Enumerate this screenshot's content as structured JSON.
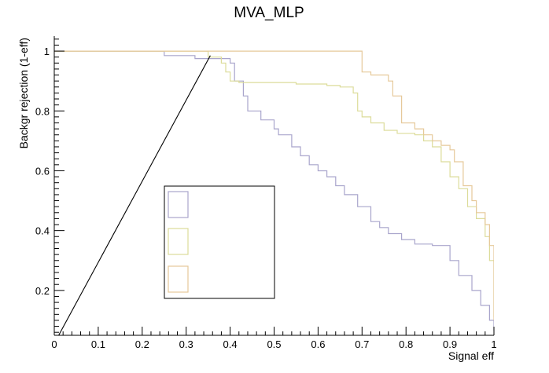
{
  "chart_data": {
    "type": "line",
    "title": "MVA_MLP",
    "xlabel": "Signal eff",
    "ylabel": "Backgr rejection (1-eff)",
    "xlim": [
      0,
      1
    ],
    "ylim": [
      0.05,
      1.05
    ],
    "x_ticks": [
      "0",
      "0.1",
      "0.2",
      "0.3",
      "0.4",
      "0.5",
      "0.6",
      "0.7",
      "0.8",
      "0.9",
      "1"
    ],
    "y_ticks": [
      "0.2",
      "0.4",
      "0.6",
      "0.8",
      "1"
    ],
    "grid": false,
    "legend_placement": "center",
    "series": [
      {
        "name": "",
        "color": "#a9a5cc",
        "points": [
          [
            0,
            1.0
          ],
          [
            0.25,
            1.0
          ],
          [
            0.25,
            0.985
          ],
          [
            0.32,
            0.985
          ],
          [
            0.32,
            0.975
          ],
          [
            0.4,
            0.975
          ],
          [
            0.4,
            0.96
          ],
          [
            0.41,
            0.96
          ],
          [
            0.41,
            0.9
          ],
          [
            0.43,
            0.9
          ],
          [
            0.43,
            0.85
          ],
          [
            0.44,
            0.85
          ],
          [
            0.44,
            0.8
          ],
          [
            0.47,
            0.8
          ],
          [
            0.47,
            0.77
          ],
          [
            0.5,
            0.77
          ],
          [
            0.5,
            0.74
          ],
          [
            0.51,
            0.74
          ],
          [
            0.51,
            0.72
          ],
          [
            0.54,
            0.72
          ],
          [
            0.54,
            0.68
          ],
          [
            0.56,
            0.68
          ],
          [
            0.56,
            0.65
          ],
          [
            0.58,
            0.65
          ],
          [
            0.58,
            0.62
          ],
          [
            0.6,
            0.62
          ],
          [
            0.6,
            0.6
          ],
          [
            0.62,
            0.6
          ],
          [
            0.62,
            0.58
          ],
          [
            0.64,
            0.58
          ],
          [
            0.64,
            0.55
          ],
          [
            0.66,
            0.55
          ],
          [
            0.66,
            0.52
          ],
          [
            0.69,
            0.52
          ],
          [
            0.69,
            0.48
          ],
          [
            0.72,
            0.48
          ],
          [
            0.72,
            0.43
          ],
          [
            0.74,
            0.43
          ],
          [
            0.74,
            0.41
          ],
          [
            0.76,
            0.41
          ],
          [
            0.76,
            0.39
          ],
          [
            0.79,
            0.39
          ],
          [
            0.79,
            0.37
          ],
          [
            0.82,
            0.37
          ],
          [
            0.82,
            0.355
          ],
          [
            0.86,
            0.355
          ],
          [
            0.86,
            0.35
          ],
          [
            0.9,
            0.35
          ],
          [
            0.9,
            0.3
          ],
          [
            0.92,
            0.3
          ],
          [
            0.92,
            0.25
          ],
          [
            0.95,
            0.25
          ],
          [
            0.95,
            0.2
          ],
          [
            0.97,
            0.2
          ],
          [
            0.97,
            0.15
          ],
          [
            0.99,
            0.15
          ],
          [
            0.99,
            0.1
          ],
          [
            1,
            0.1
          ],
          [
            1,
            0.065
          ]
        ]
      },
      {
        "name": "",
        "color": "#dcdc9a",
        "points": [
          [
            0,
            1.0
          ],
          [
            0.35,
            1.0
          ],
          [
            0.35,
            0.98
          ],
          [
            0.38,
            0.98
          ],
          [
            0.38,
            0.96
          ],
          [
            0.39,
            0.96
          ],
          [
            0.39,
            0.93
          ],
          [
            0.4,
            0.93
          ],
          [
            0.4,
            0.9
          ],
          [
            0.42,
            0.9
          ],
          [
            0.42,
            0.895
          ],
          [
            0.55,
            0.895
          ],
          [
            0.55,
            0.89
          ],
          [
            0.62,
            0.89
          ],
          [
            0.62,
            0.885
          ],
          [
            0.65,
            0.885
          ],
          [
            0.65,
            0.88
          ],
          [
            0.68,
            0.88
          ],
          [
            0.68,
            0.86
          ],
          [
            0.69,
            0.86
          ],
          [
            0.69,
            0.8
          ],
          [
            0.7,
            0.8
          ],
          [
            0.7,
            0.78
          ],
          [
            0.72,
            0.78
          ],
          [
            0.72,
            0.76
          ],
          [
            0.75,
            0.76
          ],
          [
            0.75,
            0.735
          ],
          [
            0.78,
            0.735
          ],
          [
            0.78,
            0.725
          ],
          [
            0.82,
            0.725
          ],
          [
            0.82,
            0.72
          ],
          [
            0.84,
            0.72
          ],
          [
            0.84,
            0.7
          ],
          [
            0.86,
            0.7
          ],
          [
            0.86,
            0.68
          ],
          [
            0.88,
            0.68
          ],
          [
            0.88,
            0.63
          ],
          [
            0.9,
            0.63
          ],
          [
            0.9,
            0.58
          ],
          [
            0.92,
            0.58
          ],
          [
            0.92,
            0.54
          ],
          [
            0.94,
            0.54
          ],
          [
            0.94,
            0.48
          ],
          [
            0.96,
            0.48
          ],
          [
            0.96,
            0.44
          ],
          [
            0.98,
            0.44
          ],
          [
            0.98,
            0.38
          ],
          [
            0.99,
            0.38
          ],
          [
            0.99,
            0.3
          ],
          [
            1,
            0.3
          ],
          [
            1,
            0.11
          ]
        ]
      },
      {
        "name": "",
        "color": "#e6c99a",
        "points": [
          [
            0,
            1.0
          ],
          [
            0.7,
            1.0
          ],
          [
            0.7,
            0.93
          ],
          [
            0.72,
            0.93
          ],
          [
            0.72,
            0.92
          ],
          [
            0.76,
            0.92
          ],
          [
            0.76,
            0.9
          ],
          [
            0.77,
            0.9
          ],
          [
            0.77,
            0.85
          ],
          [
            0.79,
            0.85
          ],
          [
            0.79,
            0.76
          ],
          [
            0.82,
            0.76
          ],
          [
            0.82,
            0.74
          ],
          [
            0.84,
            0.74
          ],
          [
            0.84,
            0.72
          ],
          [
            0.86,
            0.72
          ],
          [
            0.86,
            0.7
          ],
          [
            0.88,
            0.7
          ],
          [
            0.88,
            0.685
          ],
          [
            0.9,
            0.685
          ],
          [
            0.9,
            0.67
          ],
          [
            0.91,
            0.67
          ],
          [
            0.91,
            0.63
          ],
          [
            0.93,
            0.63
          ],
          [
            0.93,
            0.55
          ],
          [
            0.95,
            0.55
          ],
          [
            0.95,
            0.5
          ],
          [
            0.96,
            0.5
          ],
          [
            0.96,
            0.46
          ],
          [
            0.98,
            0.46
          ],
          [
            0.98,
            0.42
          ],
          [
            0.99,
            0.42
          ],
          [
            0.99,
            0.35
          ],
          [
            1,
            0.35
          ],
          [
            1,
            0.1
          ]
        ]
      },
      {
        "name": "",
        "color": "#000000",
        "points": [
          [
            0.01,
            0.05
          ],
          [
            0.355,
            0.985
          ]
        ]
      }
    ]
  }
}
